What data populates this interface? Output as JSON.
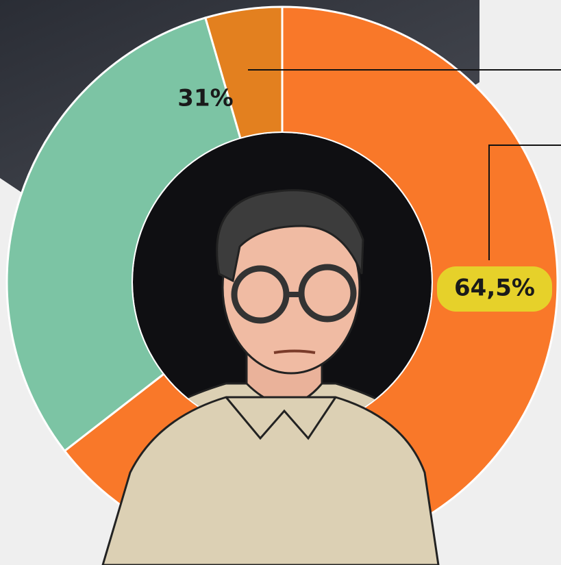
{
  "chart_data": {
    "type": "donut",
    "categories": [
      null,
      null,
      null
    ],
    "values": [
      64.5,
      31,
      4.5
    ],
    "value_labels": [
      "64,5%",
      "31%",
      null
    ],
    "colors": [
      "#f97829",
      "#7cc4a4",
      "#e3801f"
    ]
  }
}
